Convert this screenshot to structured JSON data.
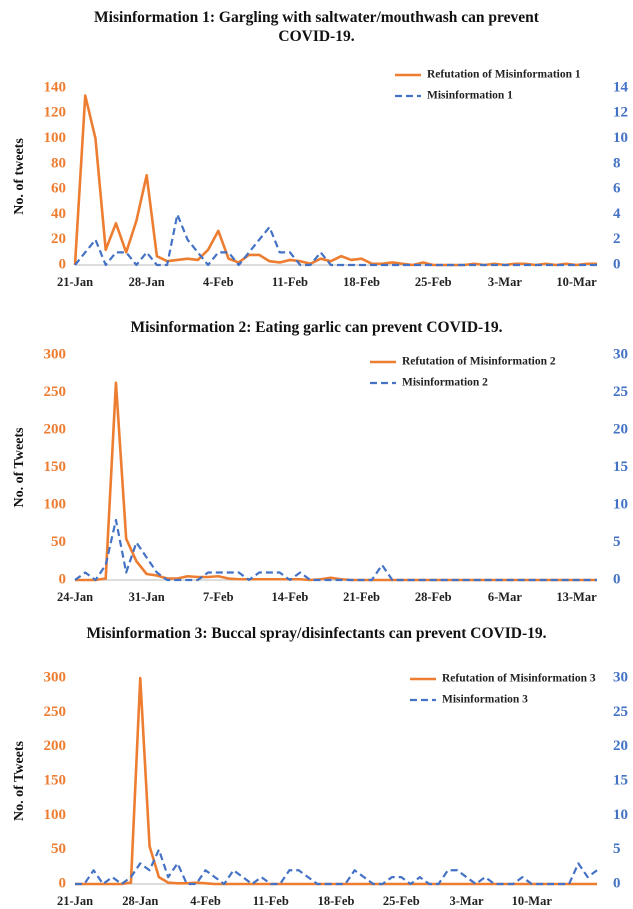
{
  "chart_data": [
    {
      "type": "line",
      "title": "Misinformation 1: Gargling with saltwater/mouthwash can prevent COVID-19.",
      "ylabel": "No. of tweets",
      "legend": "upper right",
      "categories": [
        "21-Jan",
        null,
        null,
        null,
        null,
        null,
        null,
        "28-Jan",
        null,
        null,
        null,
        null,
        null,
        null,
        "4-Feb",
        null,
        null,
        null,
        null,
        null,
        null,
        "11-Feb",
        null,
        null,
        null,
        null,
        null,
        null,
        "18-Feb",
        null,
        null,
        null,
        null,
        null,
        null,
        "25-Feb",
        null,
        null,
        null,
        null,
        null,
        null,
        "3-Mar",
        null,
        null,
        null,
        null,
        null,
        null,
        "10-Mar",
        null,
        null
      ],
      "ylim": [
        0,
        140
      ],
      "yticks": [
        0,
        20,
        40,
        60,
        80,
        100,
        120,
        140
      ],
      "y2lim": [
        0,
        14
      ],
      "y2ticks": [
        0,
        2,
        4,
        6,
        8,
        10,
        12,
        14
      ],
      "series": [
        {
          "name": "Refutation of Misinformation 1",
          "color": "#ed7d31",
          "line_style": "solid",
          "values": [
            0,
            134,
            100,
            12,
            33,
            10,
            35,
            71,
            7,
            3,
            4,
            5,
            4,
            12,
            27,
            5,
            2,
            8,
            8,
            3,
            2,
            4,
            3,
            1,
            5,
            3,
            7,
            4,
            5,
            1,
            1,
            2,
            1,
            0,
            2,
            0,
            0,
            0,
            0,
            1,
            0,
            1,
            0,
            1,
            1,
            0,
            1,
            0,
            1,
            0,
            1,
            1
          ]
        },
        {
          "name": "Misinformation 1",
          "color": "#4472c4",
          "line_style": "dashed",
          "axis": "y2",
          "values": [
            0,
            1,
            2,
            0,
            1,
            1,
            0,
            1,
            0,
            0,
            4,
            2,
            1,
            0,
            1,
            1,
            0,
            1,
            2,
            3,
            1,
            1,
            0,
            0,
            1,
            0,
            0,
            0,
            0,
            0,
            0,
            0,
            0,
            0,
            0,
            0,
            0,
            0,
            0,
            0,
            0,
            0,
            0,
            0,
            0,
            0,
            0,
            0,
            0,
            0,
            0,
            0
          ]
        }
      ]
    },
    {
      "type": "line",
      "title": "Misinformation 2: Eating garlic can prevent COVID-19.",
      "ylabel": "No. of Tweets",
      "legend": "upper right",
      "categories": [
        "24-Jan",
        null,
        null,
        null,
        null,
        null,
        null,
        "31-Jan",
        null,
        null,
        null,
        null,
        null,
        null,
        "7-Feb",
        null,
        null,
        null,
        null,
        null,
        null,
        "14-Feb",
        null,
        null,
        null,
        null,
        null,
        null,
        "21-Feb",
        null,
        null,
        null,
        null,
        null,
        null,
        "28-Feb",
        null,
        null,
        null,
        null,
        null,
        null,
        "6-Mar",
        null,
        null,
        null,
        null,
        null,
        null,
        "13-Mar",
        null,
        null
      ],
      "ylim": [
        0,
        300
      ],
      "yticks": [
        0,
        50,
        100,
        150,
        200,
        250,
        300
      ],
      "y2lim": [
        0,
        30
      ],
      "y2ticks": [
        0,
        5,
        10,
        15,
        20,
        25,
        30
      ],
      "series": [
        {
          "name": "Refutation of Misinformation 2",
          "color": "#ed7d31",
          "line_style": "solid",
          "values": [
            0,
            0,
            0,
            2,
            263,
            55,
            25,
            8,
            6,
            2,
            2,
            5,
            4,
            4,
            5,
            2,
            1,
            1,
            1,
            1,
            1,
            1,
            1,
            0,
            1,
            3,
            1,
            0,
            0,
            0,
            0,
            0,
            0,
            0,
            0,
            0,
            0,
            0,
            0,
            0,
            0,
            0,
            0,
            0,
            0,
            0,
            0,
            0,
            0,
            0,
            0,
            0
          ]
        },
        {
          "name": "Misinformation 2",
          "color": "#4472c4",
          "line_style": "dashed",
          "axis": "y2",
          "values": [
            0,
            1,
            0,
            2,
            8,
            1,
            5,
            3,
            1,
            0,
            0,
            0,
            0,
            1,
            1,
            1,
            1,
            0,
            1,
            1,
            1,
            0,
            1,
            0,
            0,
            0,
            0,
            0,
            0,
            0,
            2,
            0,
            0,
            0,
            0,
            0,
            0,
            0,
            0,
            0,
            0,
            0,
            0,
            0,
            0,
            0,
            0,
            0,
            0,
            0,
            0,
            0
          ]
        }
      ]
    },
    {
      "type": "line",
      "title": "Misinformation 3: Buccal spray/disinfectants can prevent COVID-19.",
      "ylabel": "No. of Tweets",
      "legend": "upper right",
      "categories": [
        "21-Jan",
        null,
        null,
        null,
        null,
        null,
        null,
        "28-Jan",
        null,
        null,
        null,
        null,
        null,
        null,
        "4-Feb",
        null,
        null,
        null,
        null,
        null,
        null,
        "11-Feb",
        null,
        null,
        null,
        null,
        null,
        null,
        "18-Feb",
        null,
        null,
        null,
        null,
        null,
        null,
        "25-Feb",
        null,
        null,
        null,
        null,
        null,
        null,
        "3-Mar",
        null,
        null,
        null,
        null,
        null,
        null,
        "10-Mar",
        null,
        null,
        null,
        null,
        null,
        null,
        null
      ],
      "ylim": [
        0,
        300
      ],
      "yticks": [
        0,
        50,
        100,
        150,
        200,
        250,
        300
      ],
      "y2lim": [
        0,
        30
      ],
      "y2ticks": [
        0,
        5,
        10,
        15,
        20,
        25,
        30
      ],
      "series": [
        {
          "name": "Refutation of Misinformation 3",
          "color": "#ed7d31",
          "line_style": "solid",
          "values": [
            0,
            0,
            0,
            0,
            0,
            0,
            2,
            300,
            55,
            10,
            2,
            1,
            1,
            2,
            1,
            0,
            0,
            0,
            0,
            0,
            0,
            0,
            0,
            0,
            0,
            0,
            0,
            0,
            0,
            0,
            0,
            0,
            0,
            0,
            0,
            0,
            0,
            0,
            0,
            0,
            0,
            0,
            0,
            0,
            0,
            0,
            0,
            0,
            0,
            0,
            0,
            0,
            0,
            0,
            0,
            0,
            0
          ]
        },
        {
          "name": "Misinformation 3",
          "color": "#4472c4",
          "line_style": "dashed",
          "axis": "y2",
          "values": [
            0,
            0,
            2,
            0,
            1,
            0,
            1,
            3,
            2,
            5,
            1,
            3,
            0,
            0,
            2,
            1,
            0,
            2,
            1,
            0,
            1,
            0,
            0,
            2,
            2,
            1,
            0,
            0,
            0,
            0,
            2,
            1,
            0,
            0,
            1,
            1,
            0,
            1,
            0,
            0,
            2,
            2,
            1,
            0,
            1,
            0,
            0,
            0,
            1,
            0,
            0,
            0,
            0,
            0,
            3,
            1,
            2
          ]
        }
      ]
    }
  ]
}
